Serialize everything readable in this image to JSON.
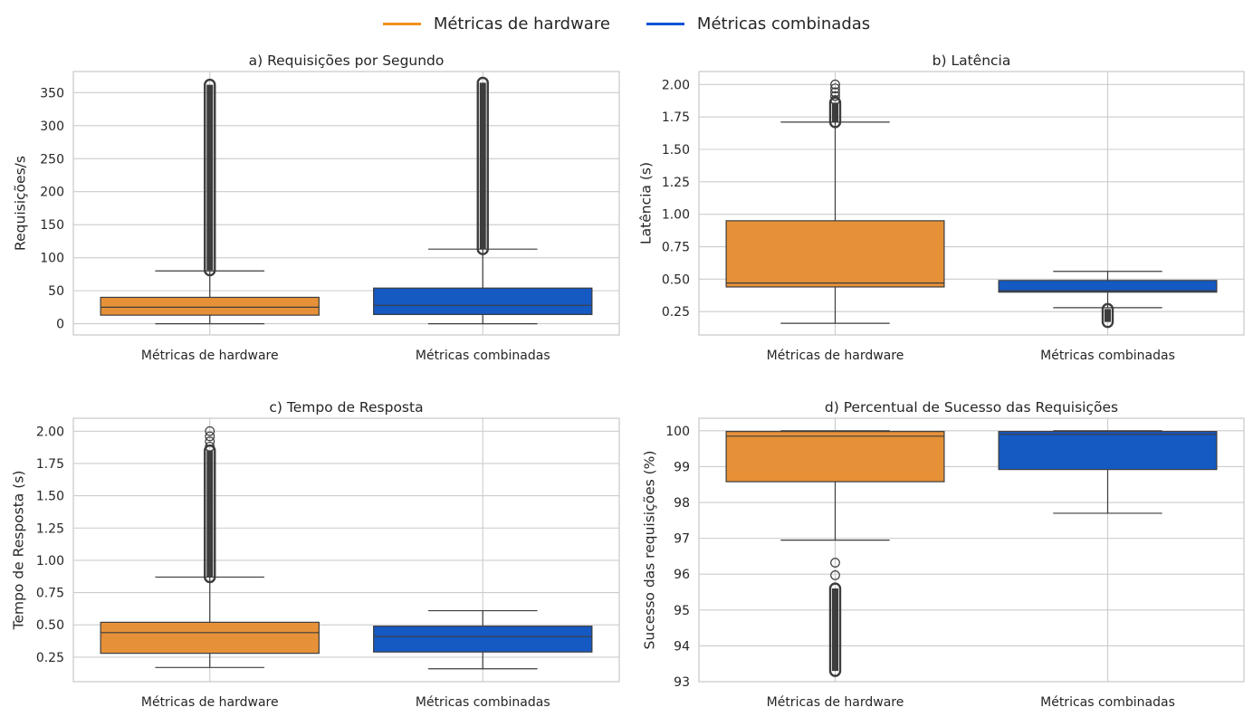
{
  "legend": [
    {
      "label": "Métricas de hardware",
      "color": "#f0901f"
    },
    {
      "label": "Métricas combinadas",
      "color": "#0a53d8"
    }
  ],
  "chart_data": [
    {
      "type": "box",
      "title": "a) Requisições por Segundo",
      "xlabel": "",
      "ylabel": "Requisições/s",
      "categories": [
        "Métricas de hardware",
        "Métricas combinadas"
      ],
      "ylim": [
        -17,
        382
      ],
      "yticks": [
        0,
        50,
        100,
        150,
        200,
        250,
        300,
        350
      ],
      "ytick_labels": [
        "0",
        "50",
        "100",
        "150",
        "200",
        "250",
        "300",
        "350"
      ],
      "grid": true,
      "series": [
        {
          "color": "#e69138",
          "whisker_low": 0,
          "q1": 13,
          "median": 25,
          "q3": 40,
          "whisker_high": 80,
          "outlier_ranges": [
            [
              81,
              362
            ]
          ],
          "outliers": []
        },
        {
          "color": "#1559c2",
          "whisker_low": 0,
          "q1": 14,
          "median": 28,
          "q3": 54,
          "whisker_high": 113,
          "outlier_ranges": [
            [
              113,
              365
            ]
          ],
          "outliers": []
        }
      ]
    },
    {
      "type": "box",
      "title": "b) Latência",
      "xlabel": "",
      "ylabel": "Latência (s)",
      "categories": [
        "Métricas de hardware",
        "Métricas combinadas"
      ],
      "ylim": [
        0.07,
        2.1
      ],
      "yticks": [
        0.25,
        0.5,
        0.75,
        1.0,
        1.25,
        1.5,
        1.75,
        2.0
      ],
      "ytick_labels": [
        "0.25",
        "0.50",
        "0.75",
        "1.00",
        "1.25",
        "1.50",
        "1.75",
        "2.00"
      ],
      "grid": true,
      "series": [
        {
          "color": "#e69138",
          "whisker_low": 0.16,
          "q1": 0.44,
          "median": 0.47,
          "q3": 0.95,
          "whisker_high": 1.71,
          "outlier_ranges": [
            [
              1.71,
              1.86
            ]
          ],
          "outliers": [
            1.88,
            1.91,
            1.94,
            1.97,
            2.0
          ]
        },
        {
          "color": "#1559c2",
          "whisker_low": 0.28,
          "q1": 0.4,
          "median": 0.41,
          "q3": 0.49,
          "whisker_high": 0.56,
          "outlier_ranges": [
            [
              0.17,
              0.27
            ]
          ],
          "outliers": []
        }
      ]
    },
    {
      "type": "box",
      "title": "c) Tempo de Resposta",
      "xlabel": "",
      "ylabel": "Tempo de Resposta (s)",
      "categories": [
        "Métricas de hardware",
        "Métricas combinadas"
      ],
      "ylim": [
        0.06,
        2.1
      ],
      "yticks": [
        0.25,
        0.5,
        0.75,
        1.0,
        1.25,
        1.5,
        1.75,
        2.0
      ],
      "ytick_labels": [
        "0.25",
        "0.50",
        "0.75",
        "1.00",
        "1.25",
        "1.50",
        "1.75",
        "2.00"
      ],
      "grid": true,
      "series": [
        {
          "color": "#e69138",
          "whisker_low": 0.17,
          "q1": 0.28,
          "median": 0.44,
          "q3": 0.52,
          "whisker_high": 0.87,
          "outlier_ranges": [
            [
              0.87,
              1.85
            ]
          ],
          "outliers": [
            1.88,
            1.92,
            1.96,
            2.0
          ]
        },
        {
          "color": "#1559c2",
          "whisker_low": 0.16,
          "q1": 0.29,
          "median": 0.41,
          "q3": 0.49,
          "whisker_high": 0.61,
          "outlier_ranges": [],
          "outliers": []
        }
      ]
    },
    {
      "type": "box",
      "title": "d) Percentual de Sucesso das Requisições",
      "xlabel": "",
      "ylabel": "Sucesso das requisições (%)",
      "categories": [
        "Métricas de hardware",
        "Métricas combinadas"
      ],
      "ylim": [
        93.0,
        100.35
      ],
      "yticks": [
        93,
        94,
        95,
        96,
        97,
        98,
        99,
        100
      ],
      "ytick_labels": [
        "93",
        "94",
        "95",
        "96",
        "97",
        "98",
        "99",
        "100"
      ],
      "grid": true,
      "series": [
        {
          "color": "#e69138",
          "whisker_low": 96.95,
          "q1": 98.58,
          "median": 99.85,
          "q3": 99.98,
          "whisker_high": 100.0,
          "outlier_ranges": [
            [
              93.3,
              95.6
            ]
          ],
          "outliers": [
            95.97,
            96.32
          ]
        },
        {
          "color": "#1559c2",
          "whisker_low": 97.7,
          "q1": 98.92,
          "median": 99.9,
          "q3": 99.98,
          "whisker_high": 100.0,
          "outlier_ranges": [],
          "outliers": []
        }
      ]
    }
  ]
}
